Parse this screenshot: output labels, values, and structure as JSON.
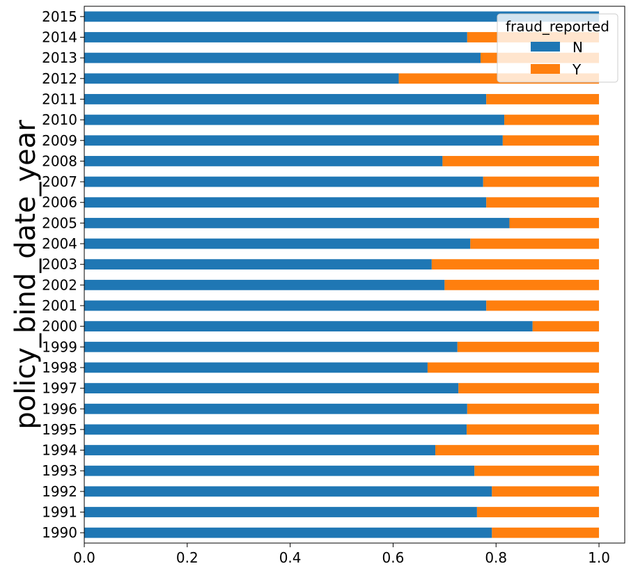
{
  "chart_data": {
    "type": "bar",
    "orientation": "horizontal",
    "stacked": true,
    "ylabel": "policy_bind_date_year",
    "xlabel": "",
    "xlim": [
      0.0,
      1.05
    ],
    "xticks": [
      "0.0",
      "0.2",
      "0.4",
      "0.6",
      "0.8",
      "1.0"
    ],
    "grid": false,
    "legend_position": "top-right",
    "legend": {
      "title": "fraud_reported"
    },
    "categories": [
      "1990",
      "1991",
      "1992",
      "1993",
      "1994",
      "1995",
      "1996",
      "1997",
      "1998",
      "1999",
      "2000",
      "2001",
      "2002",
      "2003",
      "2004",
      "2005",
      "2006",
      "2007",
      "2008",
      "2009",
      "2010",
      "2011",
      "2012",
      "2013",
      "2014",
      "2015"
    ],
    "series": [
      {
        "name": "N",
        "color": "#1f77b4",
        "values": [
          0.792,
          0.763,
          0.792,
          0.758,
          0.682,
          0.743,
          0.744,
          0.727,
          0.667,
          0.725,
          0.871,
          0.781,
          0.7,
          0.675,
          0.75,
          0.826,
          0.781,
          0.775,
          0.696,
          0.813,
          0.816,
          0.781,
          0.611,
          0.77,
          0.744,
          1.0
        ]
      },
      {
        "name": "Y",
        "color": "#ff7f0e",
        "values": [
          0.208,
          0.237,
          0.208,
          0.242,
          0.318,
          0.257,
          0.256,
          0.273,
          0.333,
          0.275,
          0.129,
          0.219,
          0.3,
          0.325,
          0.25,
          0.174,
          0.219,
          0.225,
          0.304,
          0.187,
          0.184,
          0.219,
          0.389,
          0.23,
          0.256,
          0.0
        ]
      }
    ]
  }
}
